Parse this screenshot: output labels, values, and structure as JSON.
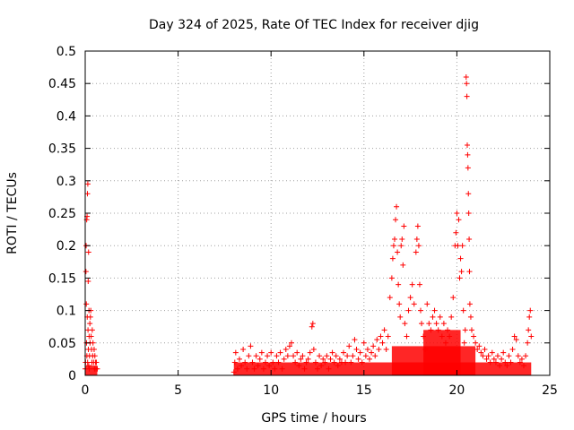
{
  "chart_data": {
    "type": "scatter",
    "title": "Day 324 of 2025, Rate Of TEC Index for receiver djig",
    "xlabel": "GPS time / hours",
    "ylabel": "ROTI / TECUs",
    "xlim": [
      0,
      25
    ],
    "ylim": [
      0,
      0.5
    ],
    "xticks": [
      0,
      5,
      10,
      15,
      20,
      25
    ],
    "xtick_labels": [
      "0",
      "5",
      "10",
      "15",
      "20",
      "25"
    ],
    "yticks": [
      0,
      0.05,
      0.1,
      0.15,
      0.2,
      0.25,
      0.3,
      0.35,
      0.4,
      0.45,
      0.5
    ],
    "ytick_labels": [
      "0",
      "0.05",
      "0.1",
      "0.15",
      "0.2",
      "0.25",
      "0.3",
      "0.35",
      "0.4",
      "0.45",
      "0.5"
    ],
    "grid": true,
    "marker": "+",
    "color": "#ff0000",
    "series": [
      {
        "name": "ROTI",
        "points": [
          [
            0.0,
            0.01
          ],
          [
            0.02,
            0.02
          ],
          [
            0.04,
            0.16
          ],
          [
            0.05,
            0.2
          ],
          [
            0.06,
            0.11
          ],
          [
            0.07,
            0.05
          ],
          [
            0.08,
            0.24
          ],
          [
            0.09,
            0.03
          ],
          [
            0.1,
            0.245
          ],
          [
            0.11,
            0.09
          ],
          [
            0.12,
            0.28
          ],
          [
            0.13,
            0.02
          ],
          [
            0.14,
            0.295
          ],
          [
            0.15,
            0.07
          ],
          [
            0.16,
            0.145
          ],
          [
            0.17,
            0.04
          ],
          [
            0.18,
            0.19
          ],
          [
            0.19,
            0.015
          ],
          [
            0.2,
            0.1
          ],
          [
            0.21,
            0.06
          ],
          [
            0.22,
            0.01
          ],
          [
            0.23,
            0.03
          ],
          [
            0.25,
            0.08
          ],
          [
            0.26,
            0.05
          ],
          [
            0.28,
            0.09
          ],
          [
            0.3,
            0.1
          ],
          [
            0.32,
            0.06
          ],
          [
            0.34,
            0.04
          ],
          [
            0.36,
            0.02
          ],
          [
            0.38,
            0.07
          ],
          [
            0.4,
            0.03
          ],
          [
            0.42,
            0.05
          ],
          [
            0.45,
            0.02
          ],
          [
            0.48,
            0.04
          ],
          [
            0.5,
            0.01
          ],
          [
            0.52,
            0.03
          ],
          [
            0.55,
            0.02
          ],
          [
            0.58,
            0.01
          ],
          [
            0.6,
            0.02
          ],
          [
            0.65,
            0.01
          ],
          [
            8.0,
            0.005
          ],
          [
            8.05,
            0.02
          ],
          [
            8.1,
            0.035
          ],
          [
            8.2,
            0.01
          ],
          [
            8.3,
            0.025
          ],
          [
            8.4,
            0.015
          ],
          [
            8.5,
            0.04
          ],
          [
            8.6,
            0.02
          ],
          [
            8.7,
            0.01
          ],
          [
            8.8,
            0.03
          ],
          [
            8.9,
            0.045
          ],
          [
            9.0,
            0.02
          ],
          [
            9.1,
            0.01
          ],
          [
            9.2,
            0.03
          ],
          [
            9.3,
            0.015
          ],
          [
            9.4,
            0.025
          ],
          [
            9.5,
            0.035
          ],
          [
            9.6,
            0.01
          ],
          [
            9.7,
            0.02
          ],
          [
            9.8,
            0.03
          ],
          [
            9.9,
            0.015
          ],
          [
            10.0,
            0.035
          ],
          [
            10.1,
            0.02
          ],
          [
            10.2,
            0.01
          ],
          [
            10.3,
            0.03
          ],
          [
            10.4,
            0.02
          ],
          [
            10.5,
            0.035
          ],
          [
            10.6,
            0.01
          ],
          [
            10.7,
            0.025
          ],
          [
            10.8,
            0.04
          ],
          [
            10.9,
            0.03
          ],
          [
            11.0,
            0.045
          ],
          [
            11.1,
            0.05
          ],
          [
            11.2,
            0.03
          ],
          [
            11.3,
            0.02
          ],
          [
            11.4,
            0.035
          ],
          [
            11.5,
            0.015
          ],
          [
            11.6,
            0.025
          ],
          [
            11.7,
            0.03
          ],
          [
            11.8,
            0.01
          ],
          [
            11.9,
            0.02
          ],
          [
            12.0,
            0.025
          ],
          [
            12.1,
            0.035
          ],
          [
            12.2,
            0.075
          ],
          [
            12.25,
            0.08
          ],
          [
            12.3,
            0.04
          ],
          [
            12.4,
            0.02
          ],
          [
            12.5,
            0.01
          ],
          [
            12.6,
            0.03
          ],
          [
            12.7,
            0.015
          ],
          [
            12.8,
            0.025
          ],
          [
            12.9,
            0.02
          ],
          [
            13.0,
            0.03
          ],
          [
            13.1,
            0.01
          ],
          [
            13.2,
            0.025
          ],
          [
            13.3,
            0.035
          ],
          [
            13.4,
            0.02
          ],
          [
            13.5,
            0.03
          ],
          [
            13.6,
            0.015
          ],
          [
            13.7,
            0.025
          ],
          [
            13.8,
            0.02
          ],
          [
            13.9,
            0.035
          ],
          [
            14.0,
            0.02
          ],
          [
            14.1,
            0.03
          ],
          [
            14.2,
            0.045
          ],
          [
            14.3,
            0.02
          ],
          [
            14.4,
            0.03
          ],
          [
            14.5,
            0.055
          ],
          [
            14.6,
            0.04
          ],
          [
            14.7,
            0.025
          ],
          [
            14.8,
            0.035
          ],
          [
            14.9,
            0.02
          ],
          [
            15.0,
            0.05
          ],
          [
            15.1,
            0.03
          ],
          [
            15.2,
            0.04
          ],
          [
            15.3,
            0.025
          ],
          [
            15.4,
            0.035
          ],
          [
            15.5,
            0.045
          ],
          [
            15.6,
            0.03
          ],
          [
            15.7,
            0.055
          ],
          [
            15.8,
            0.04
          ],
          [
            15.9,
            0.06
          ],
          [
            16.0,
            0.05
          ],
          [
            16.1,
            0.07
          ],
          [
            16.2,
            0.04
          ],
          [
            16.3,
            0.06
          ],
          [
            16.4,
            0.12
          ],
          [
            16.5,
            0.15
          ],
          [
            16.55,
            0.18
          ],
          [
            16.6,
            0.2
          ],
          [
            16.65,
            0.21
          ],
          [
            16.7,
            0.24
          ],
          [
            16.75,
            0.26
          ],
          [
            16.8,
            0.19
          ],
          [
            16.85,
            0.14
          ],
          [
            16.9,
            0.11
          ],
          [
            16.95,
            0.09
          ],
          [
            17.0,
            0.2
          ],
          [
            17.05,
            0.21
          ],
          [
            17.1,
            0.17
          ],
          [
            17.15,
            0.23
          ],
          [
            17.2,
            0.08
          ],
          [
            17.3,
            0.06
          ],
          [
            17.4,
            0.1
          ],
          [
            17.5,
            0.12
          ],
          [
            17.6,
            0.14
          ],
          [
            17.7,
            0.11
          ],
          [
            17.8,
            0.19
          ],
          [
            17.85,
            0.21
          ],
          [
            17.9,
            0.23
          ],
          [
            17.95,
            0.2
          ],
          [
            18.0,
            0.14
          ],
          [
            18.05,
            0.1
          ],
          [
            18.1,
            0.08
          ],
          [
            18.2,
            0.06
          ],
          [
            18.3,
            0.04
          ],
          [
            18.4,
            0.11
          ],
          [
            18.5,
            0.08
          ],
          [
            18.6,
            0.07
          ],
          [
            18.7,
            0.09
          ],
          [
            18.8,
            0.1
          ],
          [
            18.9,
            0.08
          ],
          [
            19.0,
            0.07
          ],
          [
            19.1,
            0.09
          ],
          [
            19.2,
            0.06
          ],
          [
            19.3,
            0.08
          ],
          [
            19.4,
            0.05
          ],
          [
            19.5,
            0.07
          ],
          [
            19.6,
            0.06
          ],
          [
            19.7,
            0.09
          ],
          [
            19.8,
            0.12
          ],
          [
            19.9,
            0.2
          ],
          [
            19.95,
            0.22
          ],
          [
            20.0,
            0.25
          ],
          [
            20.05,
            0.2
          ],
          [
            20.1,
            0.24
          ],
          [
            20.15,
            0.15
          ],
          [
            20.2,
            0.18
          ],
          [
            20.25,
            0.16
          ],
          [
            20.3,
            0.2
          ],
          [
            20.35,
            0.1
          ],
          [
            20.4,
            0.05
          ],
          [
            20.45,
            0.07
          ],
          [
            20.5,
            0.46
          ],
          [
            20.52,
            0.45
          ],
          [
            20.54,
            0.43
          ],
          [
            20.56,
            0.355
          ],
          [
            20.58,
            0.34
          ],
          [
            20.6,
            0.32
          ],
          [
            20.62,
            0.28
          ],
          [
            20.64,
            0.25
          ],
          [
            20.66,
            0.21
          ],
          [
            20.68,
            0.16
          ],
          [
            20.7,
            0.11
          ],
          [
            20.75,
            0.09
          ],
          [
            20.8,
            0.07
          ],
          [
            20.9,
            0.06
          ],
          [
            21.0,
            0.05
          ],
          [
            21.1,
            0.04
          ],
          [
            21.2,
            0.045
          ],
          [
            21.3,
            0.035
          ],
          [
            21.4,
            0.03
          ],
          [
            21.5,
            0.04
          ],
          [
            21.6,
            0.025
          ],
          [
            21.7,
            0.03
          ],
          [
            21.8,
            0.02
          ],
          [
            21.9,
            0.035
          ],
          [
            22.0,
            0.025
          ],
          [
            22.1,
            0.02
          ],
          [
            22.2,
            0.03
          ],
          [
            22.3,
            0.015
          ],
          [
            22.4,
            0.025
          ],
          [
            22.5,
            0.035
          ],
          [
            22.6,
            0.02
          ],
          [
            22.7,
            0.015
          ],
          [
            22.8,
            0.03
          ],
          [
            22.9,
            0.02
          ],
          [
            23.0,
            0.04
          ],
          [
            23.1,
            0.06
          ],
          [
            23.2,
            0.055
          ],
          [
            23.3,
            0.03
          ],
          [
            23.4,
            0.02
          ],
          [
            23.5,
            0.025
          ],
          [
            23.6,
            0.015
          ],
          [
            23.7,
            0.03
          ],
          [
            23.8,
            0.05
          ],
          [
            23.85,
            0.07
          ],
          [
            23.9,
            0.09
          ],
          [
            23.95,
            0.1
          ],
          [
            24.0,
            0.06
          ]
        ]
      }
    ]
  }
}
